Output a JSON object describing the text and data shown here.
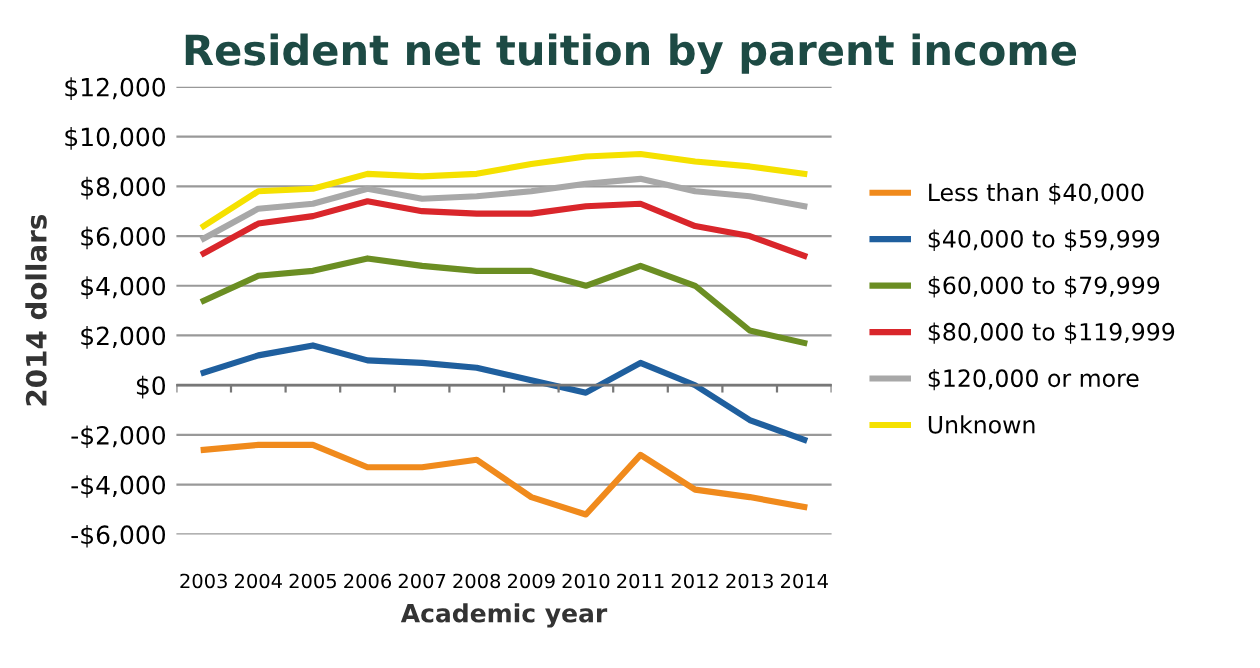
{
  "chart_data": {
    "type": "line",
    "title": "Resident net tuition by parent income",
    "xlabel": "Academic year",
    "ylabel": "2014 dollars",
    "categories": [
      "2003",
      "2004",
      "2005",
      "2006",
      "2007",
      "2008",
      "2009",
      "2010",
      "2011",
      "2012",
      "2013",
      "2014"
    ],
    "series": [
      {
        "name": "Less than $40,000",
        "color": "#f08a1c",
        "values": [
          -2600,
          -2400,
          -2400,
          -3300,
          -3300,
          -3000,
          -4500,
          -5200,
          -2800,
          -4200,
          -4500,
          -4900
        ]
      },
      {
        "name": "$40,000 to $59,999",
        "color": "#1f5f9e",
        "values": [
          500,
          1200,
          1600,
          1000,
          900,
          700,
          200,
          -300,
          900,
          0,
          -1400,
          -2200
        ]
      },
      {
        "name": "$60,000 to $79,999",
        "color": "#6b8e23",
        "values": [
          3400,
          4400,
          4600,
          5100,
          4800,
          4600,
          4600,
          4000,
          4800,
          4000,
          2200,
          1700
        ]
      },
      {
        "name": "$80,000 to $119,999",
        "color": "#d9262b",
        "values": [
          5300,
          6500,
          6800,
          7400,
          7000,
          6900,
          6900,
          7200,
          7300,
          6400,
          6000,
          5200
        ]
      },
      {
        "name": "$120,000 or more",
        "color": "#a8a8a8",
        "values": [
          5900,
          7100,
          7300,
          7900,
          7500,
          7600,
          7800,
          8100,
          8300,
          7800,
          7600,
          7200
        ]
      },
      {
        "name": "Unknown",
        "color": "#f5e100",
        "values": [
          6400,
          7800,
          7900,
          8500,
          8400,
          8500,
          8900,
          9200,
          9300,
          9000,
          8800,
          8500
        ]
      }
    ],
    "ylim": [
      -6000,
      12000
    ],
    "yticks": [
      {
        "value": -6000,
        "label": "-$6,000"
      },
      {
        "value": -4000,
        "label": "-$4,000"
      },
      {
        "value": -2000,
        "label": "-$2,000"
      },
      {
        "value": 0,
        "label": "$0"
      },
      {
        "value": 2000,
        "label": "$2,000"
      },
      {
        "value": 4000,
        "label": "$4,000"
      },
      {
        "value": 6000,
        "label": "$6,000"
      },
      {
        "value": 8000,
        "label": "$8,000"
      },
      {
        "value": 10000,
        "label": "$10,000"
      },
      {
        "value": 12000,
        "label": "$12,000"
      }
    ],
    "grid": "y",
    "legend": "right",
    "marker": "none",
    "line_style": "solid"
  }
}
